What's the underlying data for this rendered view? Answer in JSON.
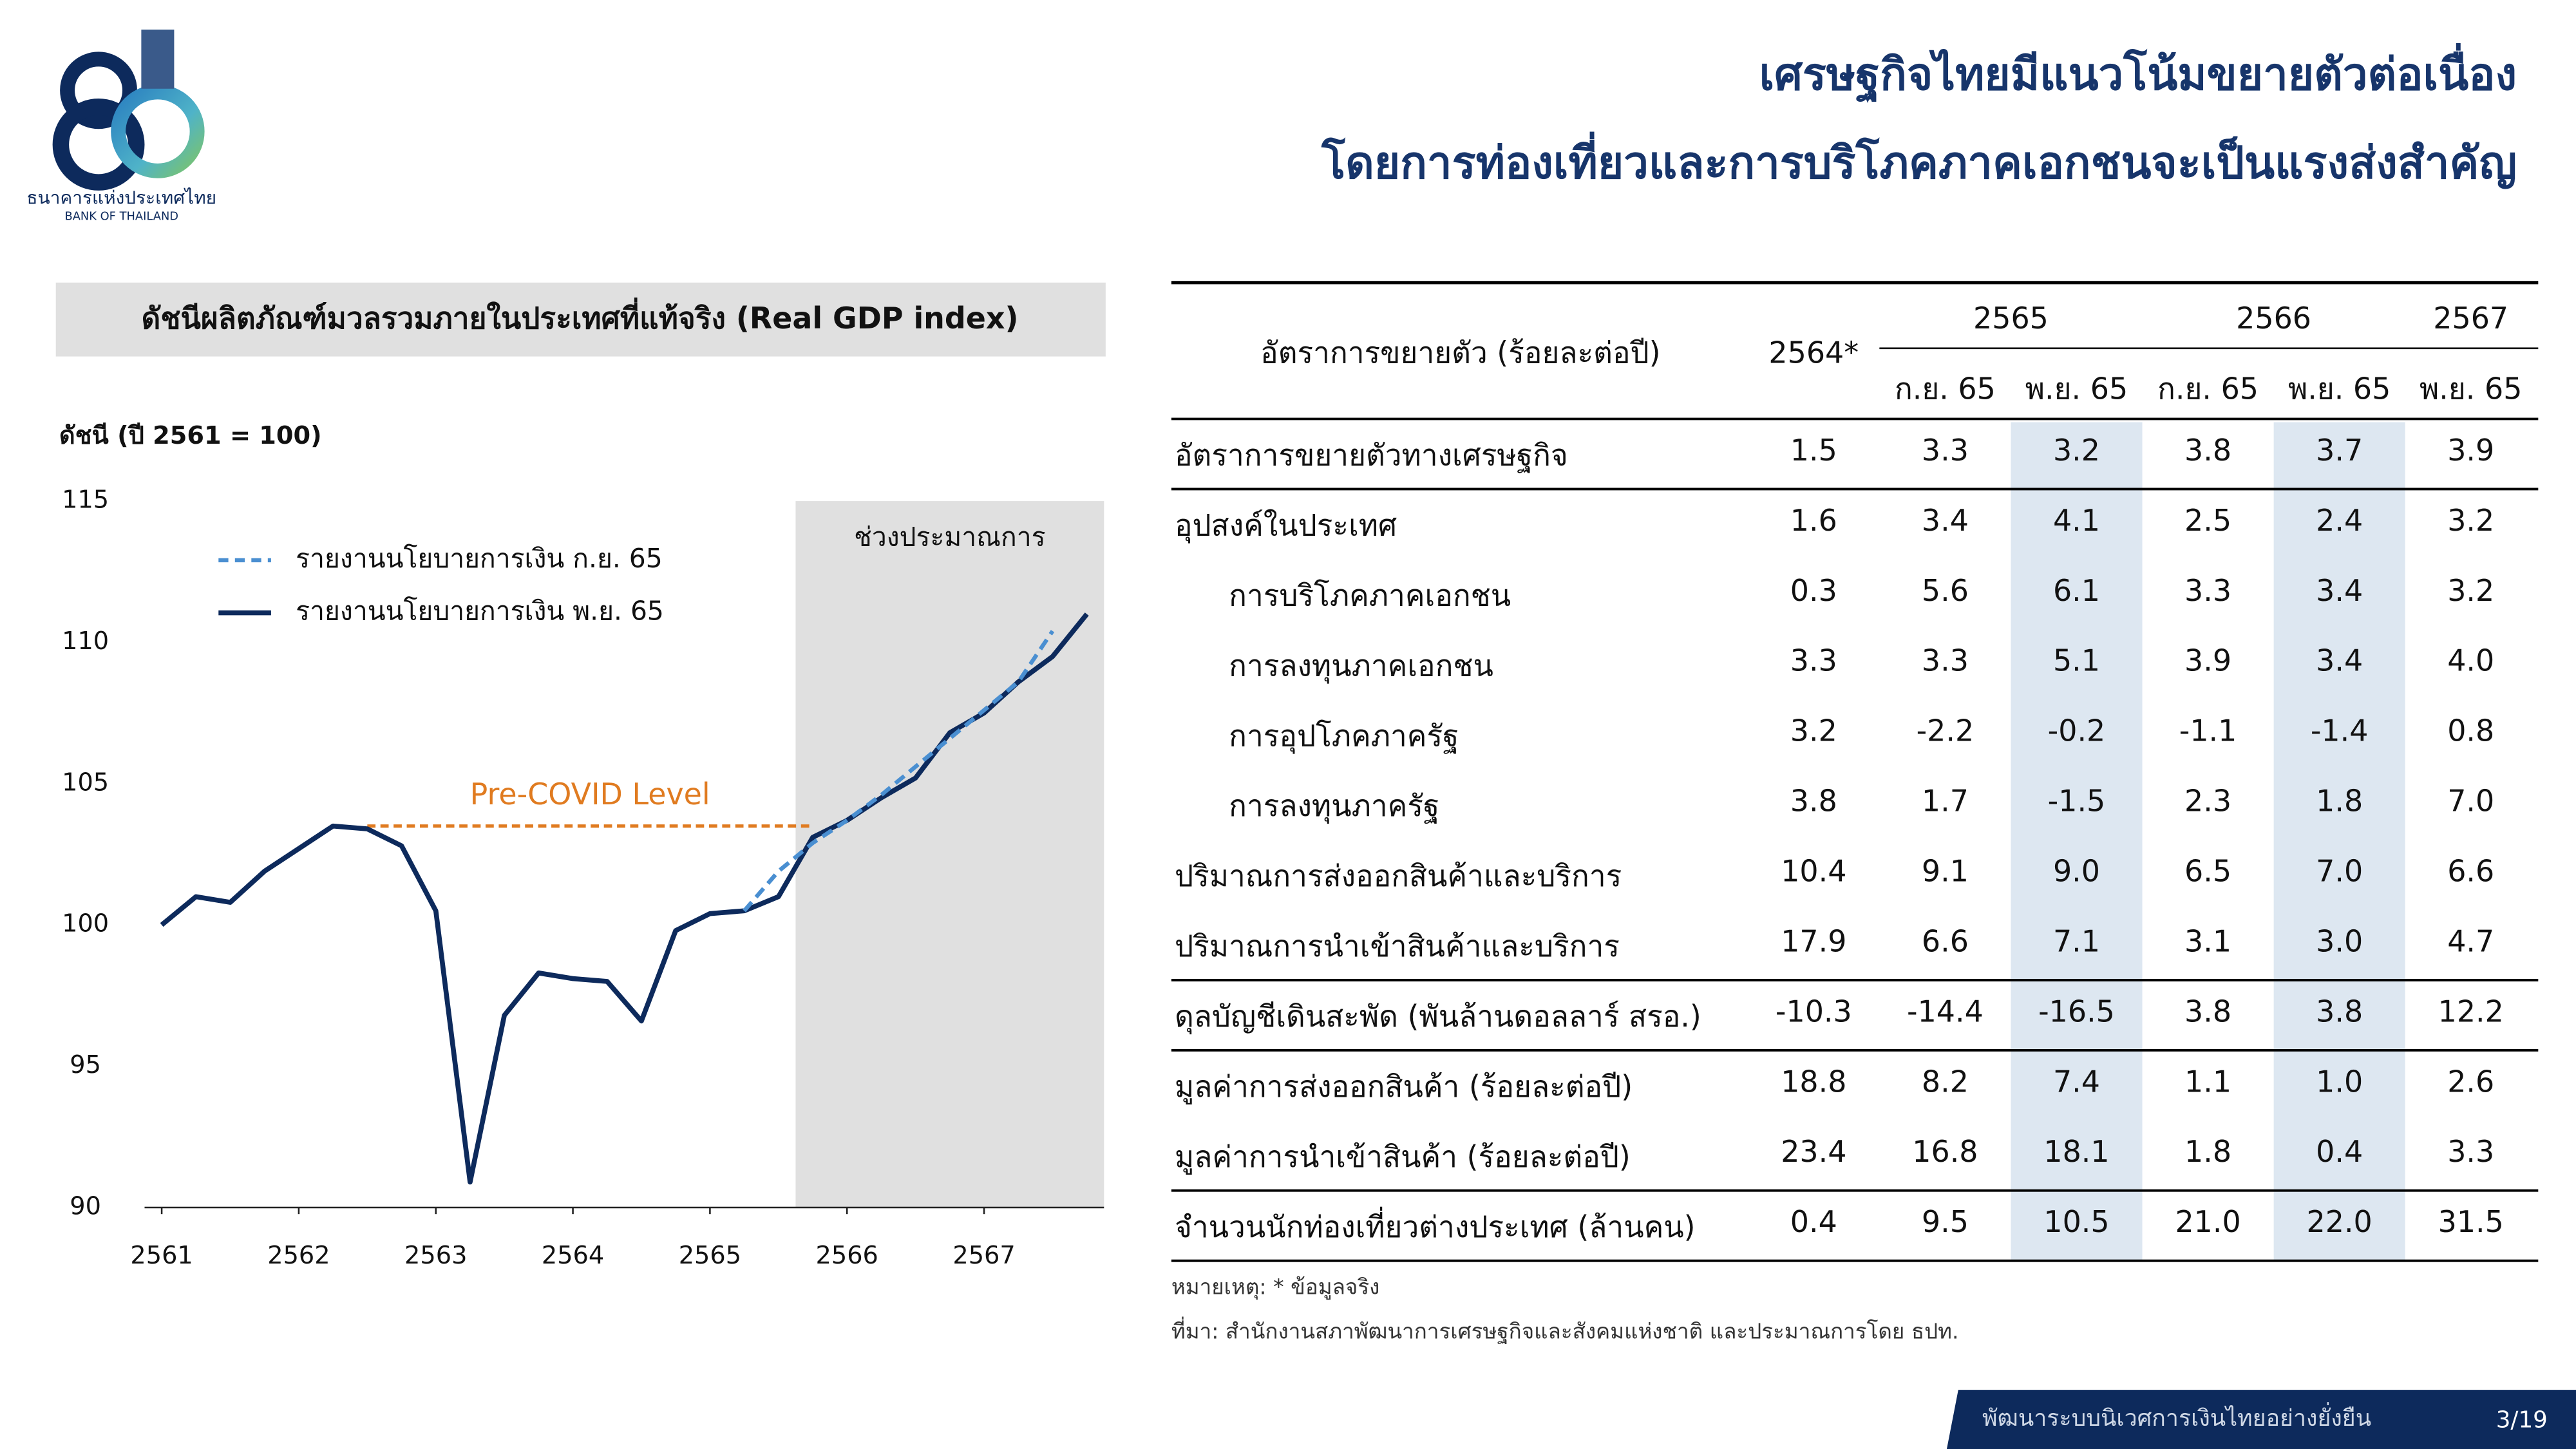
{
  "header": {
    "title_lines": [
      "เศรษฐกิจไทยมีแนวโน้มขยายตัวต่อเนื่อง",
      "โดยการท่องเที่ยวและการบริโภคภาคเอกชนจะเป็นแรงส่งสำคัญ"
    ],
    "logo_text": "ธนาคารแห่งประเทศไทย",
    "logo_subtext": "BANK OF THAILAND"
  },
  "chart_data": {
    "type": "line",
    "title": "ดัชนีผลิตภัณฑ์มวลรวมภายในประเทศที่แท้จริง (Real GDP index)",
    "y_label": "ดัชนี (ปี 2561 = 100)",
    "x": [
      2561,
      2561.25,
      2561.5,
      2561.75,
      2562,
      2562.25,
      2562.5,
      2562.75,
      2563,
      2563.25,
      2563.5,
      2563.75,
      2564,
      2564.25,
      2564.5,
      2564.75,
      2565,
      2565.25,
      2565.5,
      2565.75,
      2566,
      2566.25,
      2566.5,
      2566.75,
      2567,
      2567.25,
      2567.5,
      2567.75
    ],
    "series": [
      {
        "name": "รายงานนโยบายการเงิน ก.ย. 65",
        "color": "#4a8fd1",
        "dashed": true,
        "values": [
          null,
          null,
          null,
          null,
          null,
          null,
          null,
          null,
          null,
          null,
          null,
          null,
          null,
          null,
          null,
          null,
          null,
          100.5,
          101.9,
          102.9,
          103.7,
          104.6,
          105.6,
          106.6,
          107.6,
          108.6,
          110.4,
          null
        ]
      },
      {
        "name": "รายงานนโยบายการเงิน พ.ย. 65",
        "color": "#0d2a5c",
        "dashed": false,
        "values": [
          100.0,
          101.0,
          100.8,
          101.9,
          102.7,
          103.5,
          103.4,
          102.8,
          100.5,
          90.9,
          96.8,
          98.3,
          98.1,
          98.0,
          96.6,
          99.8,
          100.4,
          100.5,
          101.0,
          103.1,
          103.7,
          104.5,
          105.2,
          106.8,
          107.5,
          108.6,
          109.5,
          111.0
        ]
      }
    ],
    "xlim": [
      2560.875,
      2567.875
    ],
    "xticks": [
      2561,
      2562,
      2563,
      2564,
      2565,
      2566,
      2567
    ],
    "ylim": [
      90,
      115
    ],
    "yticks": [
      90,
      95,
      100,
      105,
      110,
      115
    ],
    "grid": false,
    "legend": "upper left",
    "reference_line": {
      "label": "Pre-COVID Level",
      "value": 103.5,
      "x": [
        2562.5,
        2565.75
      ],
      "color": "#e07b20"
    },
    "forecast_region": {
      "label": "ช่วงประมาณการ",
      "start": 2565.625,
      "color": "#e0e0e0"
    }
  },
  "table": {
    "header": {
      "label": "อัตราการขยายตัว (ร้อยละต่อปี)",
      "first_col": "2564*",
      "groups": [
        "2565",
        "2566",
        "2567"
      ],
      "subcols": [
        "ก.ย. 65",
        "พ.ย. 65",
        "ก.ย. 65",
        "พ.ย. 65",
        "พ.ย. 65"
      ]
    },
    "rows": [
      {
        "label": "อัตราการขยายตัวทางเศรษฐกิจ",
        "values": [
          "1.5",
          "3.3",
          "3.2",
          "3.8",
          "3.7",
          "3.9"
        ]
      },
      {
        "label": "อุปสงค์ในประเทศ",
        "values": [
          "1.6",
          "3.4",
          "4.1",
          "2.5",
          "2.4",
          "3.2"
        ]
      },
      {
        "label": "การบริโภคภาคเอกชน",
        "values": [
          "0.3",
          "5.6",
          "6.1",
          "3.3",
          "3.4",
          "3.2"
        ]
      },
      {
        "label": "การลงทุนภาคเอกชน",
        "values": [
          "3.3",
          "3.3",
          "5.1",
          "3.9",
          "3.4",
          "4.0"
        ]
      },
      {
        "label": "การอุปโภคภาครัฐ",
        "values": [
          "3.2",
          "-2.2",
          "-0.2",
          "-1.1",
          "-1.4",
          "0.8"
        ]
      },
      {
        "label": "การลงทุนภาครัฐ",
        "values": [
          "3.8",
          "1.7",
          "-1.5",
          "2.3",
          "1.8",
          "7.0"
        ]
      },
      {
        "label": "ปริมาณการส่งออกสินค้าและบริการ",
        "values": [
          "10.4",
          "9.1",
          "9.0",
          "6.5",
          "7.0",
          "6.6"
        ]
      },
      {
        "label": "ปริมาณการนำเข้าสินค้าและบริการ",
        "values": [
          "17.9",
          "6.6",
          "7.1",
          "3.1",
          "3.0",
          "4.7"
        ]
      },
      {
        "label": "ดุลบัญชีเดินสะพัด (พันล้านดอลลาร์ สรอ.)",
        "values": [
          "-10.3",
          "-14.4",
          "-16.5",
          "3.8",
          "3.8",
          "12.2"
        ]
      },
      {
        "label": "มูลค่าการส่งออกสินค้า (ร้อยละต่อปี)",
        "values": [
          "18.8",
          "8.2",
          "7.4",
          "1.1",
          "1.0",
          "2.6"
        ]
      },
      {
        "label": "มูลค่าการนำเข้าสินค้า (ร้อยละต่อปี)",
        "values": [
          "23.4",
          "16.8",
          "18.1",
          "1.8",
          "0.4",
          "3.3"
        ]
      },
      {
        "label": "จำนวนนักท่องเที่ยวต่างประเทศ (ล้านคน)",
        "values": [
          "0.4",
          "9.5",
          "10.5",
          "21.0",
          "22.0",
          "31.5"
        ]
      }
    ]
  },
  "notes": [
    "หมายเหตุ: * ข้อมูลจริง",
    "ที่มา: สำนักงานสภาพัฒนาการเศรษฐกิจและสังคมแห่งชาติ และประมาณการโดย ธปท."
  ],
  "footer": {
    "text": "พัฒนาระบบนิเวศการเงินไทยอย่างยั่งยืน",
    "page": "3/19"
  }
}
